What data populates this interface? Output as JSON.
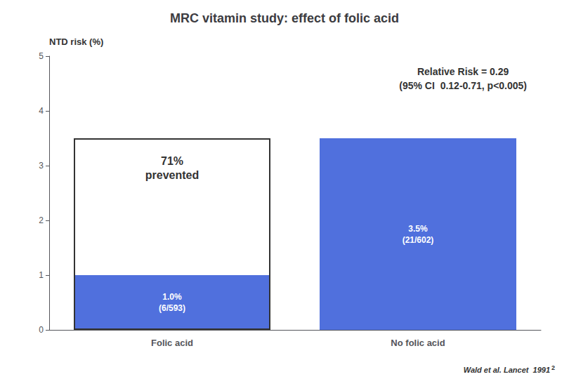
{
  "chart_data": {
    "type": "bar",
    "title": "MRC vitamin study: effect of folic acid",
    "ylabel": "NTD risk (%)",
    "categories": [
      "Folic acid",
      "No folic acid"
    ],
    "values": [
      1.0,
      3.5
    ],
    "data_labels": true,
    "value_labels": [
      "1.0%",
      "3.5%"
    ],
    "value_notes": [
      "(6/593)",
      "(21/602)"
    ],
    "outline_values": [
      3.5,
      null
    ],
    "outline_label": [
      "71%",
      "prevented"
    ],
    "annotations": [
      "Relative Risk = 0.29",
      "(95% CI  0.12-0.71, p<0.005)"
    ],
    "citation": "Wald et al. Lancet  1991",
    "citation_superscript": "2",
    "ylim": [
      0,
      5
    ],
    "yticks": [
      0,
      1,
      2,
      3,
      4,
      5
    ],
    "grid": false
  }
}
